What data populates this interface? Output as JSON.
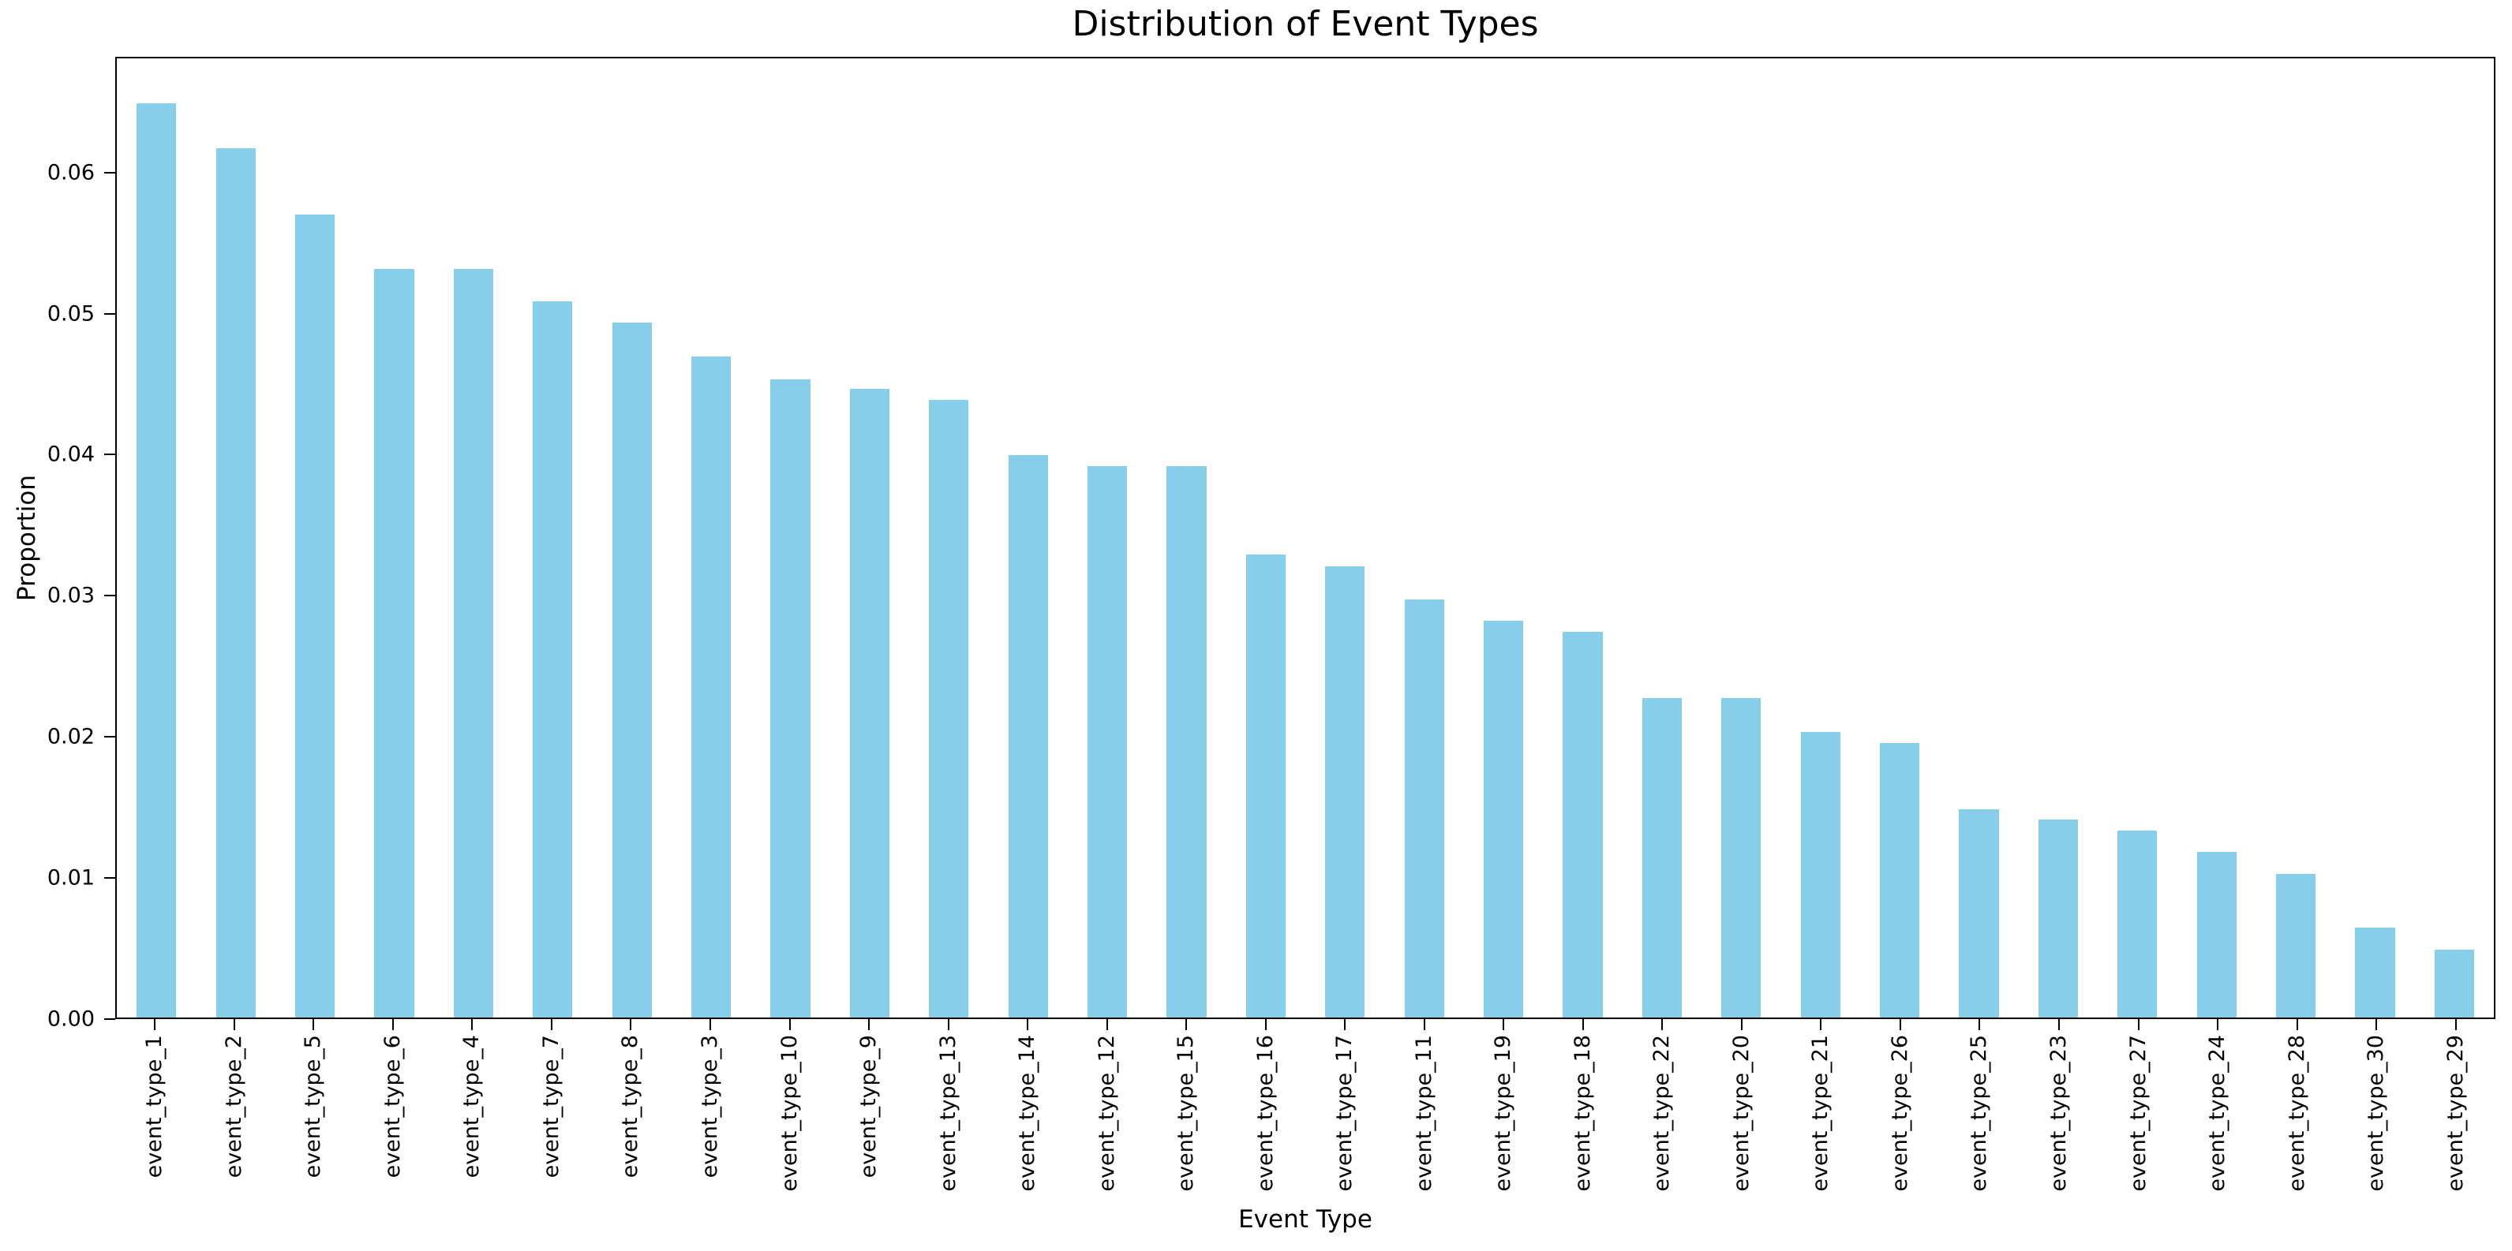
{
  "figure": {
    "title": "Distribution of Event Types",
    "xlabel": "Event Type",
    "ylabel": "Proportion"
  },
  "chart_data": {
    "type": "bar",
    "title": "Distribution of Event Types",
    "xlabel": "Event Type",
    "ylabel": "Proportion",
    "bar_color": "#87CEEB",
    "background_color": "#ffffff",
    "spine_color": "#000000",
    "grid": false,
    "legend": false,
    "ylim": [
      0,
      0.0682
    ],
    "yticks": [
      "0.00",
      "0.01",
      "0.02",
      "0.03",
      "0.04",
      "0.05",
      "0.06"
    ],
    "x_tick_label_rotation": 90,
    "categories": [
      "event_type_1",
      "event_type_2",
      "event_type_5",
      "event_type_6",
      "event_type_4",
      "event_type_7",
      "event_type_8",
      "event_type_3",
      "event_type_10",
      "event_type_9",
      "event_type_13",
      "event_type_14",
      "event_type_12",
      "event_type_15",
      "event_type_16",
      "event_type_17",
      "event_type_11",
      "event_type_19",
      "event_type_18",
      "event_type_22",
      "event_type_20",
      "event_type_21",
      "event_type_26",
      "event_type_25",
      "event_type_23",
      "event_type_27",
      "event_type_24",
      "event_type_28",
      "event_type_30",
      "event_type_29"
    ],
    "values": [
      0.065,
      0.0618,
      0.0571,
      0.0532,
      0.0532,
      0.0509,
      0.0494,
      0.047,
      0.0454,
      0.0447,
      0.0439,
      0.04,
      0.0392,
      0.0392,
      0.0329,
      0.0321,
      0.0297,
      0.0282,
      0.0274,
      0.0227,
      0.0227,
      0.0203,
      0.0195,
      0.0148,
      0.0141,
      0.0133,
      0.0118,
      0.0102,
      0.0064,
      0.0048
    ]
  }
}
